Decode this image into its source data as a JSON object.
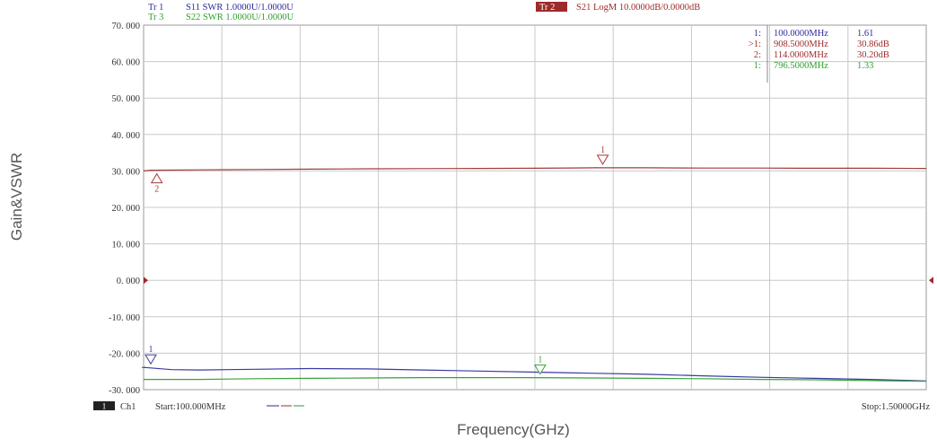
{
  "header": {
    "tr1": {
      "tag": "Tr 1",
      "text": "S11  SWR  1.0000U/1.0000U",
      "color": "#2b2b9e"
    },
    "tr3": {
      "tag": "Tr 3",
      "text": "S22  SWR  1.0000U/1.0000U",
      "color": "#2f9e2f"
    },
    "tr2": {
      "tag": "Tr 2",
      "text": "S21  LogM  10.0000dB/0.0000dB",
      "color": "#9e2b2b"
    }
  },
  "footer": {
    "channel_tag": "1",
    "channel": "Ch1",
    "start": "Start:100.000MHz",
    "stop": "Stop:1.50000GHz"
  },
  "marker_table": [
    {
      "id": "1:",
      "freq": "100.0000MHz",
      "value": "1.61",
      "color": "#2b2b9e"
    },
    {
      "id": ">1:",
      "freq": "908.5000MHz",
      "value": "30.86dB",
      "color": "#9e2b2b"
    },
    {
      "id": "2:",
      "freq": "114.0000MHz",
      "value": "30.20dB",
      "color": "#9e2b2b"
    },
    {
      "id": "1:",
      "freq": "796.5000MHz",
      "value": "1.33",
      "color": "#2f9e2f"
    }
  ],
  "chart_data": {
    "type": "line",
    "xlabel": "Frequency(GHz)",
    "ylabel": "Gain&VSWR",
    "x_unit": "MHz",
    "xlim": [
      100,
      1500
    ],
    "ylim": [
      -30,
      70
    ],
    "yticks": [
      "70. 000",
      "60. 000",
      "50. 000",
      "40. 000",
      "30. 000",
      "20. 000",
      "10. 000",
      "0. 000",
      "-10. 000",
      "-20. 000",
      "-30. 000"
    ],
    "ytick_values": [
      70,
      60,
      50,
      40,
      30,
      20,
      10,
      0,
      -10,
      -20,
      -30
    ],
    "grid": true,
    "reference_value": 0,
    "series": [
      {
        "name": "Tr 2  S21  LogM",
        "color": "#a33a3a",
        "x": [
          100,
          114,
          200,
          300,
          400,
          500,
          600,
          700,
          800,
          908.5,
          1000,
          1100,
          1200,
          1300,
          1400,
          1500
        ],
        "y": [
          30.0,
          30.2,
          30.3,
          30.4,
          30.5,
          30.6,
          30.65,
          30.7,
          30.75,
          30.86,
          30.85,
          30.8,
          30.8,
          30.75,
          30.75,
          30.7
        ]
      },
      {
        "name": "Tr 1  S11  SWR",
        "color": "#3a3aa0",
        "x": [
          100,
          150,
          200,
          300,
          400,
          500,
          600,
          700,
          800,
          900,
          1000,
          1100,
          1200,
          1300,
          1400,
          1500
        ],
        "y": [
          -23.9,
          -24.5,
          -24.6,
          -24.4,
          -24.2,
          -24.3,
          -24.6,
          -24.9,
          -25.2,
          -25.5,
          -25.8,
          -26.2,
          -26.6,
          -26.9,
          -27.2,
          -27.6
        ]
      },
      {
        "name": "Tr 3  S22  SWR",
        "color": "#3aa03a",
        "x": [
          100,
          200,
          300,
          400,
          500,
          600,
          700,
          796.5,
          900,
          1000,
          1100,
          1200,
          1300,
          1400,
          1500
        ],
        "y": [
          -27.2,
          -27.2,
          -27.0,
          -26.9,
          -26.8,
          -26.7,
          -26.7,
          -26.7,
          -26.8,
          -26.9,
          -27.0,
          -27.2,
          -27.3,
          -27.5,
          -27.7
        ]
      }
    ],
    "markers": [
      {
        "label": "1",
        "series": 0,
        "x": 908.5,
        "y": 30.86,
        "pointer": "down"
      },
      {
        "label": "2",
        "series": 0,
        "x": 114,
        "y": 30.2,
        "pointer": "up"
      },
      {
        "label": "1",
        "series": 1,
        "x": 100,
        "y": -23.9,
        "pointer": "down"
      },
      {
        "label": "1",
        "series": 2,
        "x": 796.5,
        "y": -26.7,
        "pointer": "down"
      }
    ]
  }
}
